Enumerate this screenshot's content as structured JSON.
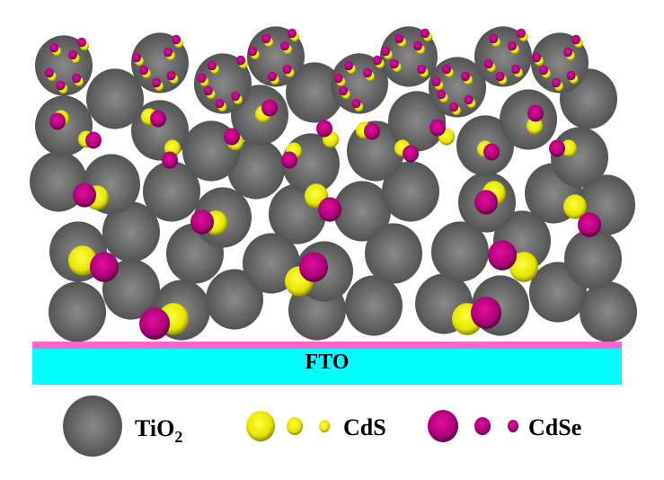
{
  "substrate": {
    "label": "FTO",
    "layer_color": "#00ffff",
    "interface_color": "#ff66cc"
  },
  "legend": {
    "tio2": {
      "label_main": "TiO",
      "label_sub": "2",
      "color": "#6e6e6e"
    },
    "cds": {
      "label": "CdS",
      "color": "#ffff00"
    },
    "cdse": {
      "label": "CdSe",
      "color": "#cc0088"
    }
  }
}
